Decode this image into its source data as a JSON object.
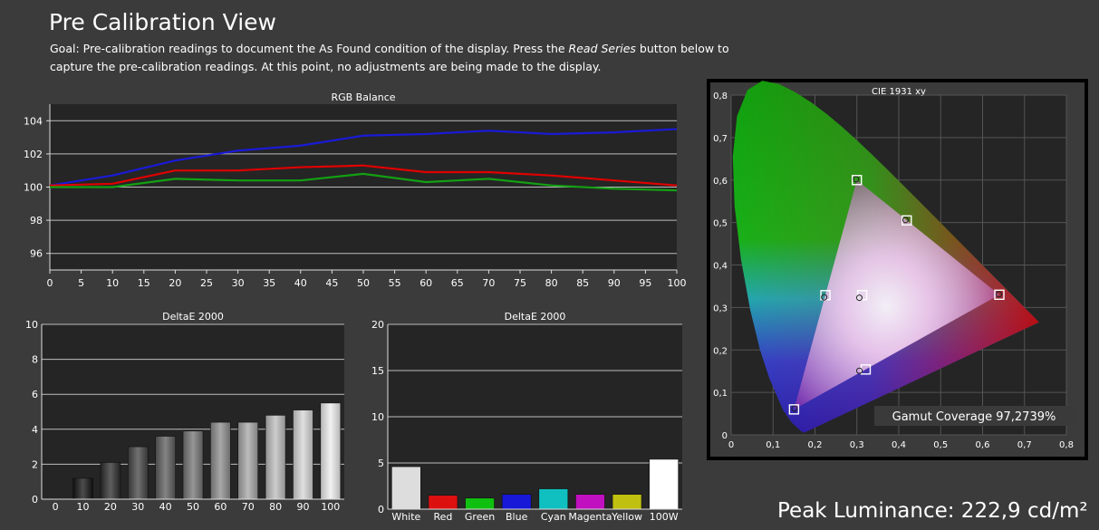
{
  "page": {
    "title": "Pre Calibration View",
    "description_pre": "Goal: Pre-calibration readings to document the As Found condition of the display. Press the ",
    "description_italic": "Read Series",
    "description_post": " button below to capture the pre-calibration readings. At this point, no adjustments are being made to the display.",
    "peak_luminance": "Peak Luminance: 222,9 cd/m²"
  },
  "colors": {
    "background": "#3b3b3b",
    "plot_bg": "#252525",
    "grid": "#bdbdbd",
    "red": "#e00000",
    "green": "#13a013",
    "blue": "#1a1ad8"
  },
  "chart_data": [
    {
      "id": "rgb_balance",
      "type": "line",
      "title": "RGB Balance",
      "x": [
        0,
        10,
        20,
        30,
        40,
        50,
        60,
        70,
        80,
        90,
        100
      ],
      "xticks": [
        "0",
        "5",
        "10",
        "15",
        "20",
        "25",
        "30",
        "35",
        "40",
        "45",
        "50",
        "55",
        "60",
        "65",
        "70",
        "75",
        "80",
        "85",
        "90",
        "95",
        "100"
      ],
      "yticks": [
        "96",
        "98",
        "100",
        "102",
        "104"
      ],
      "xlim": [
        0,
        100
      ],
      "ylim": [
        95,
        105
      ],
      "grid": true,
      "series": [
        {
          "color": "#1a1ad8",
          "values": [
            100.1,
            100.7,
            101.6,
            102.2,
            102.5,
            103.1,
            103.2,
            103.4,
            103.2,
            103.3,
            103.5
          ]
        },
        {
          "color": "#e00000",
          "values": [
            100.1,
            100.2,
            101.0,
            101.0,
            101.2,
            101.3,
            100.9,
            100.9,
            100.7,
            100.4,
            100.1
          ]
        },
        {
          "color": "#13a013",
          "values": [
            100.0,
            100.0,
            100.5,
            100.4,
            100.4,
            100.8,
            100.3,
            100.5,
            100.1,
            99.9,
            99.8
          ]
        }
      ]
    },
    {
      "id": "deltae_grayscale",
      "type": "bar",
      "title": "DeltaE 2000",
      "categories": [
        "0",
        "10",
        "20",
        "30",
        "40",
        "50",
        "60",
        "70",
        "80",
        "90",
        "100"
      ],
      "values": [
        0,
        1.2,
        2.1,
        3.0,
        3.6,
        3.9,
        4.4,
        4.4,
        4.8,
        5.1,
        5.5
      ],
      "yticks": [
        "0",
        "2",
        "4",
        "6",
        "8",
        "10"
      ],
      "ylim": [
        0,
        10
      ],
      "grid": true
    },
    {
      "id": "deltae_colors",
      "type": "bar",
      "title": "DeltaE 2000",
      "categories": [
        "White",
        "Red",
        "Green",
        "Blue",
        "Cyan",
        "Magenta",
        "Yellow",
        "100W"
      ],
      "values": [
        4.6,
        1.5,
        1.2,
        1.6,
        2.2,
        1.6,
        1.6,
        5.4
      ],
      "bar_colors": [
        "#dddddd",
        "#dd1010",
        "#10c010",
        "#1818d8",
        "#10c0c0",
        "#c010c0",
        "#c0c010",
        "#ffffff"
      ],
      "yticks": [
        "0",
        "5",
        "10",
        "15",
        "20"
      ],
      "ylim": [
        0,
        20
      ],
      "grid": true
    },
    {
      "id": "cie_1931",
      "type": "scatter",
      "title": "CIE 1931 xy",
      "xticks": [
        "0",
        "0,1",
        "0,2",
        "0,3",
        "0,4",
        "0,5",
        "0,6",
        "0,7",
        "0,8"
      ],
      "yticks": [
        "0",
        "0,1",
        "0,2",
        "0,3",
        "0,4",
        "0,5",
        "0,6",
        "0,7",
        "0,8"
      ],
      "xlim": [
        0,
        0.8
      ],
      "ylim": [
        0,
        0.8
      ],
      "grid": true,
      "targets": [
        {
          "x": 0.64,
          "y": 0.33
        },
        {
          "x": 0.3,
          "y": 0.6
        },
        {
          "x": 0.15,
          "y": 0.06
        },
        {
          "x": 0.225,
          "y": 0.329
        },
        {
          "x": 0.321,
          "y": 0.154
        },
        {
          "x": 0.419,
          "y": 0.505
        },
        {
          "x": 0.3127,
          "y": 0.329
        }
      ],
      "measured": [
        {
          "x": 0.639,
          "y": 0.331
        },
        {
          "x": 0.298,
          "y": 0.602
        },
        {
          "x": 0.151,
          "y": 0.062
        },
        {
          "x": 0.222,
          "y": 0.324
        },
        {
          "x": 0.306,
          "y": 0.151
        },
        {
          "x": 0.416,
          "y": 0.506
        },
        {
          "x": 0.306,
          "y": 0.323
        }
      ],
      "gamut_coverage": "Gamut Coverage 97,2739%"
    }
  ]
}
